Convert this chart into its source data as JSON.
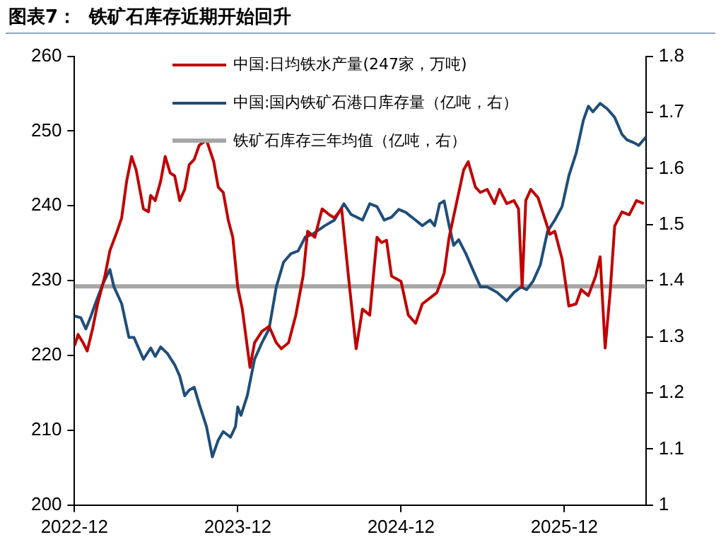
{
  "chart_data": {
    "type": "line",
    "title": "图表7：  铁矿石库存近期开始回升",
    "xlim": [
      "2022-12",
      "2026-06"
    ],
    "xticks": [
      "2022-12",
      "2023-12",
      "2024-12",
      "2025-12"
    ],
    "ylim": [
      200,
      260
    ],
    "yticks": [
      200,
      210,
      220,
      230,
      240,
      250,
      260
    ],
    "y2lim": [
      1,
      1.8
    ],
    "y2ticks": [
      1,
      1.1,
      1.2,
      1.3,
      1.4,
      1.5,
      1.6,
      1.7,
      1.8
    ],
    "grid": false,
    "legend": "top",
    "marker": "none",
    "line_style": "solid",
    "series": [
      {
        "name": "中国:日均铁水产量(247家，万吨)",
        "color": "#c00000",
        "x": [
          "2022-12-01",
          "2022-12-09",
          "2022-12-20",
          "2022-12-29",
          "2023-01-11",
          "2023-01-22",
          "2023-02-08",
          "2023-02-19",
          "2023-03-05",
          "2023-03-15",
          "2023-03-26",
          "2023-04-07",
          "2023-04-17",
          "2023-05-03",
          "2023-05-14",
          "2023-05-19",
          "2023-05-29",
          "2023-06-11",
          "2023-06-21",
          "2023-07-02",
          "2023-07-12",
          "2023-07-23",
          "2023-08-04",
          "2023-08-14",
          "2023-08-25",
          "2023-09-06",
          "2023-09-22",
          "2023-10-08",
          "2023-10-18",
          "2023-10-29",
          "2023-11-10",
          "2023-11-20",
          "2023-12-01",
          "2023-12-11",
          "2023-12-28",
          "2024-01-08",
          "2024-01-24",
          "2024-02-10",
          "2024-02-26",
          "2024-03-07",
          "2024-03-23",
          "2024-04-09",
          "2024-04-25",
          "2024-05-05",
          "2024-05-21",
          "2024-06-07",
          "2024-06-23",
          "2024-07-04",
          "2024-07-20",
          "2024-08-06",
          "2024-08-22",
          "2024-09-06",
          "2024-09-22",
          "2024-10-08",
          "2024-10-18",
          "2024-10-29",
          "2024-11-10",
          "2024-12-01",
          "2024-12-17",
          "2025-01-03",
          "2025-01-18",
          "2025-02-05",
          "2025-02-20",
          "2025-03-06",
          "2025-03-17",
          "2025-04-03",
          "2025-04-19",
          "2025-04-29",
          "2025-05-15",
          "2025-05-26",
          "2025-06-11",
          "2025-06-27",
          "2025-07-08",
          "2025-07-24",
          "2025-08-10",
          "2025-08-20",
          "2025-08-28",
          "2025-09-06",
          "2025-09-17",
          "2025-10-03",
          "2025-10-19",
          "2025-10-29",
          "2025-11-10",
          "2025-11-26",
          "2025-12-11",
          "2025-12-27",
          "2026-01-08",
          "2026-01-24",
          "2026-02-10",
          "2026-02-20",
          "2026-03-01",
          "2026-03-12",
          "2026-03-22",
          "2026-04-08",
          "2026-04-24",
          "2026-05-10",
          "2026-05-26"
        ],
        "values": [
          221.3,
          222.8,
          221.7,
          220.6,
          223.6,
          226.9,
          230.6,
          234,
          236.6,
          238.4,
          243.3,
          246.6,
          244.8,
          239.6,
          239.2,
          241.4,
          240.7,
          243.3,
          246.6,
          244.4,
          244,
          240.7,
          242.2,
          245.5,
          246.2,
          248.1,
          248.8,
          245.9,
          242.5,
          241.8,
          238.1,
          235.8,
          229.1,
          226.2,
          218.4,
          221.7,
          223.2,
          223.9,
          221.7,
          220.9,
          221.7,
          225.4,
          230.6,
          236.6,
          235.8,
          239.6,
          238.8,
          238.4,
          239.6,
          230,
          220.9,
          226.2,
          225.4,
          235.8,
          235.1,
          235.4,
          230.6,
          229.9,
          225.4,
          224.3,
          226.9,
          227.7,
          228.4,
          231,
          235.8,
          240.3,
          244.8,
          245.9,
          242.5,
          241.8,
          242.2,
          240.3,
          242.2,
          240.3,
          240.7,
          239.6,
          229.1,
          240.7,
          242.2,
          241.1,
          238.1,
          236.2,
          236.6,
          232.9,
          226.6,
          226.9,
          228.8,
          228,
          230.6,
          233.2,
          221,
          228.4,
          237.3,
          239.2,
          238.8,
          240.7,
          240.3
        ]
      },
      {
        "name": "中国:国内铁矿石港口库存量（亿吨，右）",
        "color": "#1f4e79",
        "axis": "y2",
        "x": [
          "2022-12-01",
          "2022-12-15",
          "2022-12-26",
          "2023-01-06",
          "2023-01-17",
          "2023-02-03",
          "2023-02-19",
          "2023-02-28",
          "2023-03-15",
          "2023-04-01",
          "2023-04-12",
          "2023-05-03",
          "2023-05-19",
          "2023-05-29",
          "2023-06-11",
          "2023-06-26",
          "2023-07-12",
          "2023-07-23",
          "2023-08-04",
          "2023-08-14",
          "2023-08-25",
          "2023-09-06",
          "2023-09-22",
          "2023-10-05",
          "2023-10-18",
          "2023-10-29",
          "2023-11-15",
          "2023-11-26",
          "2023-12-01",
          "2023-12-08",
          "2023-12-22",
          "2024-01-08",
          "2024-01-24",
          "2024-02-10",
          "2024-02-26",
          "2024-03-12",
          "2024-03-28",
          "2024-04-14",
          "2024-04-30",
          "2024-05-16",
          "2024-06-13",
          "2024-07-04",
          "2024-07-25",
          "2024-08-11",
          "2024-09-06",
          "2024-09-22",
          "2024-10-08",
          "2024-10-24",
          "2024-11-10",
          "2024-11-26",
          "2024-12-11",
          "2025-01-03",
          "2025-01-18",
          "2025-02-05",
          "2025-02-15",
          "2025-02-26",
          "2025-03-06",
          "2025-03-17",
          "2025-03-27",
          "2025-04-08",
          "2025-04-24",
          "2025-05-10",
          "2025-05-26",
          "2025-06-11",
          "2025-07-03",
          "2025-07-24",
          "2025-08-10",
          "2025-08-26",
          "2025-09-08",
          "2025-09-22",
          "2025-10-08",
          "2025-10-24",
          "2025-11-10",
          "2025-11-26",
          "2025-12-11",
          "2025-12-27",
          "2026-01-13",
          "2026-01-24",
          "2026-02-04",
          "2026-02-20",
          "2026-03-06",
          "2026-03-22",
          "2026-04-08",
          "2026-04-19",
          "2026-05-04",
          "2026-05-15",
          "2026-06-01"
        ],
        "values": [
          1.337,
          1.334,
          1.314,
          1.334,
          1.359,
          1.393,
          1.42,
          1.389,
          1.359,
          1.299,
          1.299,
          1.26,
          1.28,
          1.265,
          1.282,
          1.27,
          1.25,
          1.23,
          1.195,
          1.205,
          1.21,
          1.18,
          1.14,
          1.086,
          1.116,
          1.131,
          1.121,
          1.14,
          1.175,
          1.16,
          1.195,
          1.26,
          1.289,
          1.314,
          1.389,
          1.433,
          1.448,
          1.453,
          1.478,
          1.483,
          1.498,
          1.508,
          1.537,
          1.518,
          1.508,
          1.537,
          1.532,
          1.508,
          1.513,
          1.527,
          1.522,
          1.508,
          1.498,
          1.508,
          1.498,
          1.537,
          1.542,
          1.498,
          1.463,
          1.473,
          1.448,
          1.418,
          1.389,
          1.389,
          1.379,
          1.364,
          1.379,
          1.389,
          1.384,
          1.399,
          1.428,
          1.488,
          1.508,
          1.532,
          1.587,
          1.627,
          1.686,
          1.711,
          1.701,
          1.716,
          1.706,
          1.691,
          1.661,
          1.651,
          1.646,
          1.641,
          1.656
        ]
      }
    ],
    "ref_lines": [
      {
        "axis": "y2",
        "value": 1.39,
        "label": "铁矿石库存三年均值（亿吨，右）",
        "color": "#a6a6a6"
      }
    ]
  }
}
